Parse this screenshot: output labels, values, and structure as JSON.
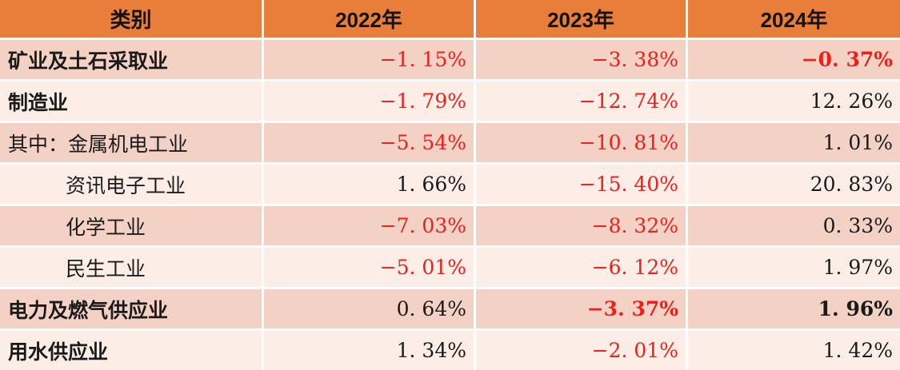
{
  "table": {
    "header": {
      "category": "类别",
      "years": [
        "2022年",
        "2023年",
        "2024年"
      ]
    },
    "rows": [
      {
        "label": "矿业及土石采取业",
        "sub": false,
        "bold": true,
        "cells": [
          {
            "text": "−1. 15%",
            "negative": true,
            "bold": false
          },
          {
            "text": "−3. 38%",
            "negative": true,
            "bold": false
          },
          {
            "text": "−0. 37%",
            "negative": true,
            "bold": true
          }
        ]
      },
      {
        "label": "制造业",
        "sub": false,
        "bold": true,
        "cells": [
          {
            "text": "−1. 79%",
            "negative": true,
            "bold": false
          },
          {
            "text": "−12. 74%",
            "negative": true,
            "bold": false
          },
          {
            "text": "12. 26%",
            "negative": false,
            "bold": false
          }
        ]
      },
      {
        "label": "其中：金属机电工业",
        "sub": false,
        "bold": false,
        "cells": [
          {
            "text": "−5. 54%",
            "negative": true,
            "bold": false
          },
          {
            "text": "−10. 81%",
            "negative": true,
            "bold": false
          },
          {
            "text": "1. 01%",
            "negative": false,
            "bold": false
          }
        ]
      },
      {
        "label": "资讯电子工业",
        "sub": true,
        "bold": false,
        "cells": [
          {
            "text": "1. 66%",
            "negative": false,
            "bold": false
          },
          {
            "text": "−15. 40%",
            "negative": true,
            "bold": false
          },
          {
            "text": "20. 83%",
            "negative": false,
            "bold": false
          }
        ]
      },
      {
        "label": "化学工业",
        "sub": true,
        "bold": false,
        "cells": [
          {
            "text": "−7. 03%",
            "negative": true,
            "bold": false
          },
          {
            "text": "−8. 32%",
            "negative": true,
            "bold": false
          },
          {
            "text": "0. 33%",
            "negative": false,
            "bold": false
          }
        ]
      },
      {
        "label": "民生工业",
        "sub": true,
        "bold": false,
        "cells": [
          {
            "text": "−5. 01%",
            "negative": true,
            "bold": false
          },
          {
            "text": "−6. 12%",
            "negative": true,
            "bold": false
          },
          {
            "text": "1. 97%",
            "negative": false,
            "bold": false
          }
        ]
      },
      {
        "label": "电力及燃气供应业",
        "sub": false,
        "bold": true,
        "cells": [
          {
            "text": "0. 64%",
            "negative": false,
            "bold": false
          },
          {
            "text": "−3. 37%",
            "negative": true,
            "bold": true
          },
          {
            "text": "1. 96%",
            "negative": false,
            "bold": true
          }
        ]
      },
      {
        "label": "用水供应业",
        "sub": false,
        "bold": true,
        "cells": [
          {
            "text": "1. 34%",
            "negative": false,
            "bold": false
          },
          {
            "text": "−2. 01%",
            "negative": true,
            "bold": false
          },
          {
            "text": "1. 42%",
            "negative": false,
            "bold": false
          }
        ]
      }
    ]
  },
  "colors": {
    "header_bg": "#E87E39",
    "row_dark_bg": "#F3D1C4",
    "row_light_bg": "#FCEEE7",
    "gridline": "#FFFFFF",
    "text_black": "#1A1A1A",
    "text_negative_red": "#EE1E19"
  },
  "chart_data": {
    "type": "table",
    "title": "",
    "columns": [
      "类别",
      "2022年",
      "2023年",
      "2024年"
    ],
    "rows": [
      {
        "category": "矿业及土石采取业",
        "values": [
          -1.15,
          -3.38,
          -0.37
        ]
      },
      {
        "category": "制造业",
        "values": [
          -1.79,
          -12.74,
          12.26
        ]
      },
      {
        "category": "其中：金属机电工业",
        "values": [
          -5.54,
          -10.81,
          1.01
        ]
      },
      {
        "category": "资讯电子工业",
        "values": [
          1.66,
          -15.4,
          20.83
        ]
      },
      {
        "category": "化学工业",
        "values": [
          -7.03,
          -8.32,
          0.33
        ]
      },
      {
        "category": "民生工业",
        "values": [
          -5.01,
          -6.12,
          1.97
        ]
      },
      {
        "category": "电力及燃气供应业",
        "values": [
          0.64,
          -3.37,
          1.96
        ]
      },
      {
        "category": "用水供应业",
        "values": [
          1.34,
          -2.01,
          1.42
        ]
      }
    ],
    "units": "%",
    "notes": "negative values shown in red, positive in black; banded orange/pink table"
  }
}
